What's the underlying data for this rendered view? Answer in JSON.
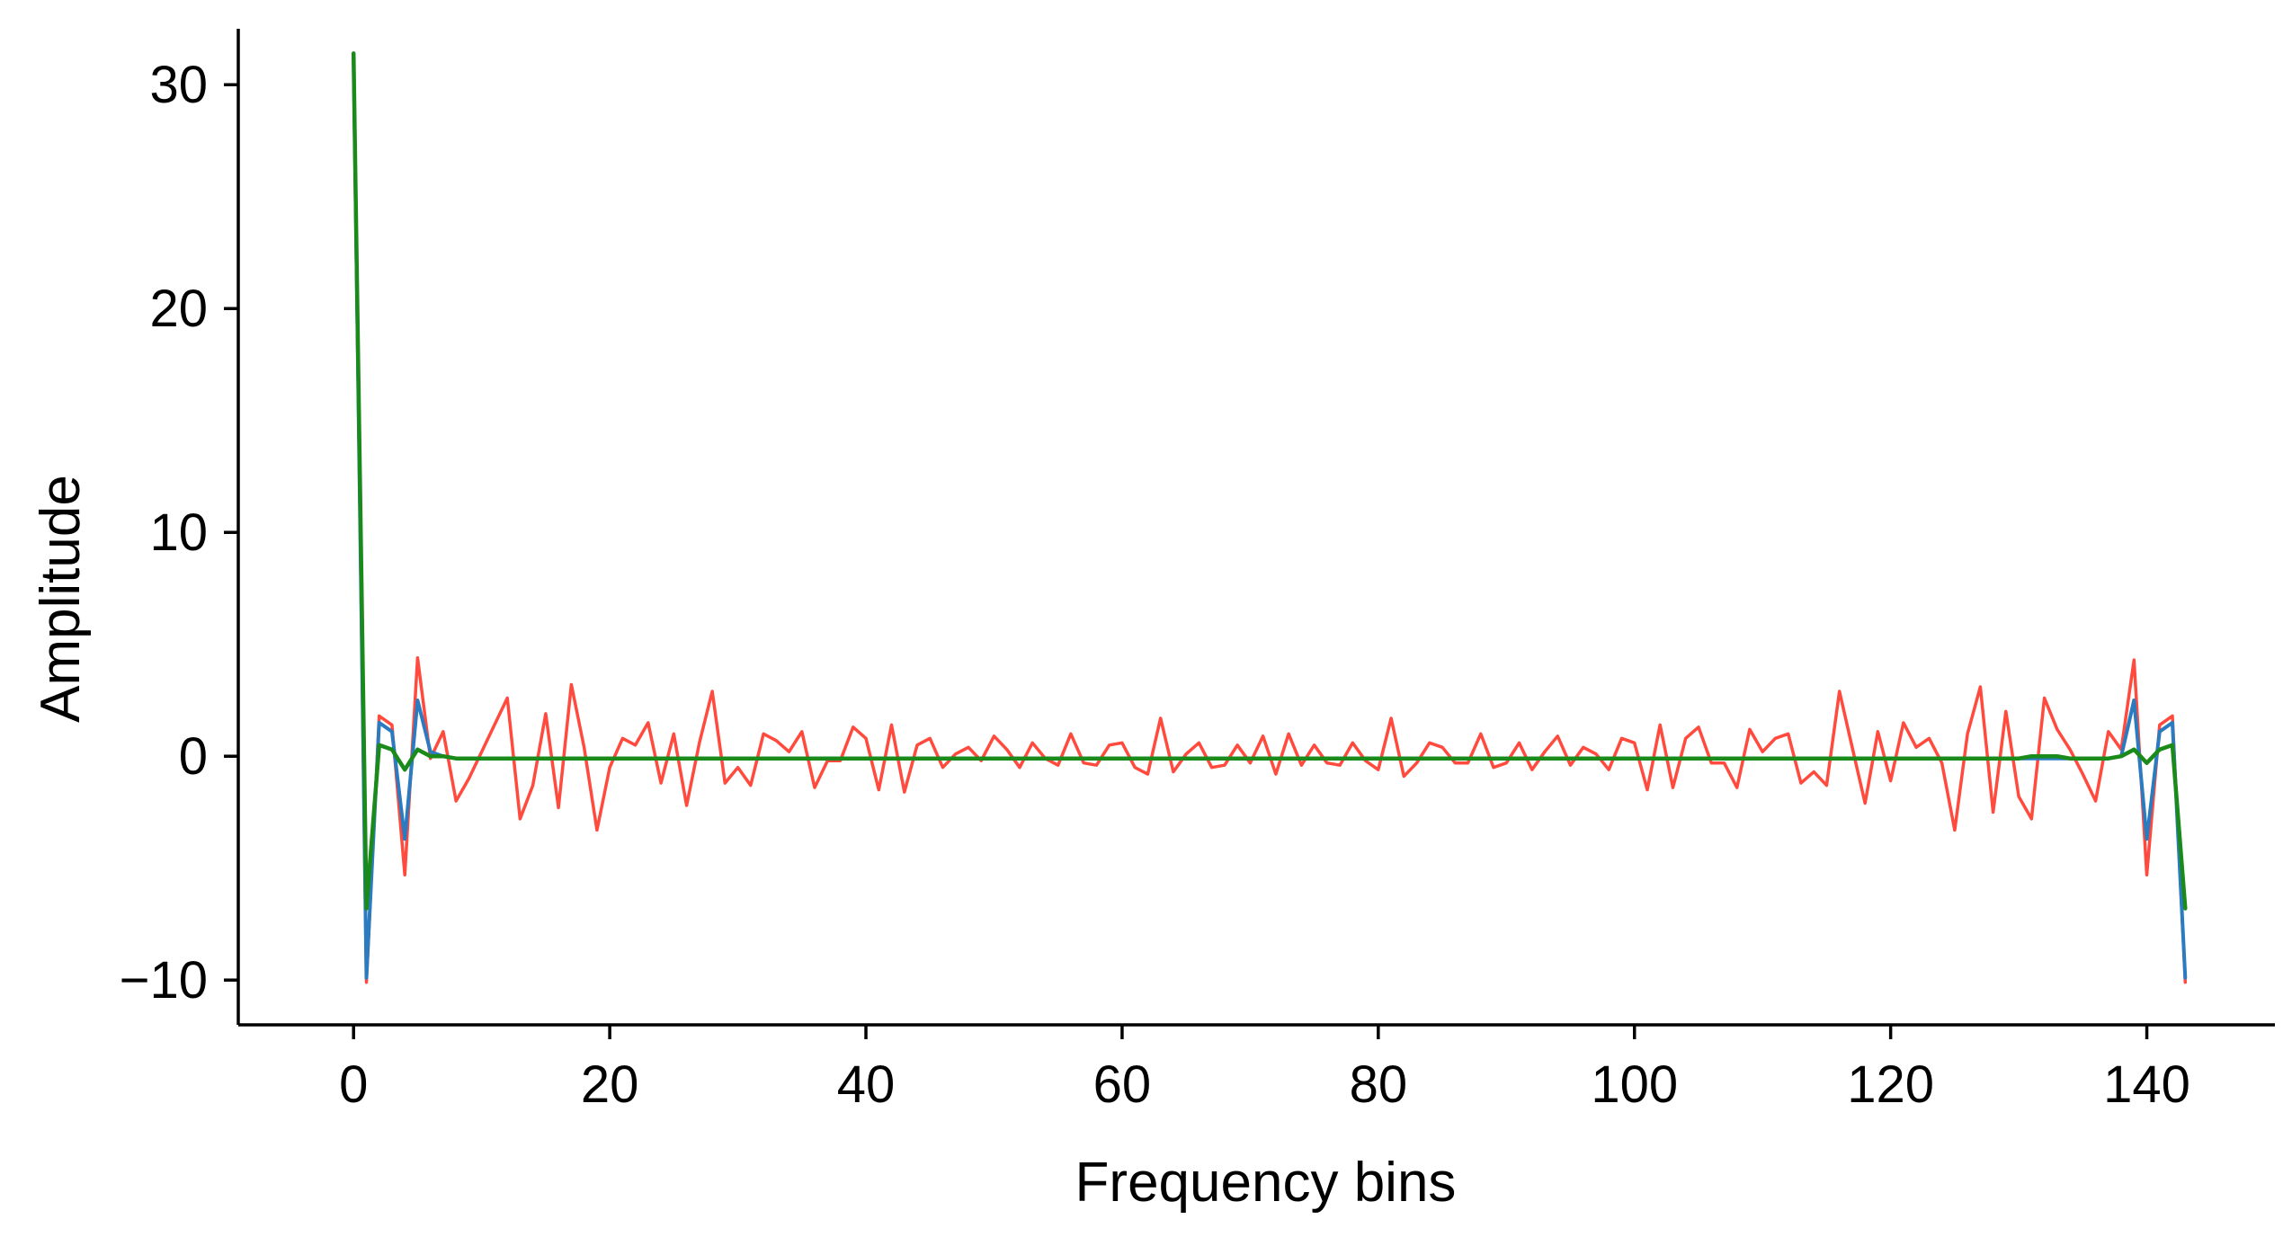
{
  "chart_data": {
    "type": "line",
    "title": "",
    "xlabel": "Frequency bins",
    "ylabel": "Amplitude",
    "xlim": [
      -9,
      150
    ],
    "ylim": [
      -12,
      32.5
    ],
    "xticks": [
      0,
      20,
      40,
      60,
      80,
      100,
      120,
      140
    ],
    "yticks": [
      -10,
      0,
      10,
      20,
      30
    ],
    "ytick_labels": [
      "−10",
      "0",
      "10",
      "20",
      "30"
    ],
    "grid": false,
    "legend": "none",
    "x": [
      0,
      1,
      2,
      3,
      4,
      5,
      6,
      7,
      8,
      9,
      10,
      11,
      12,
      13,
      14,
      15,
      16,
      17,
      18,
      19,
      20,
      21,
      22,
      23,
      24,
      25,
      26,
      27,
      28,
      29,
      30,
      31,
      32,
      33,
      34,
      35,
      36,
      37,
      38,
      39,
      40,
      41,
      42,
      43,
      44,
      45,
      46,
      47,
      48,
      49,
      50,
      51,
      52,
      53,
      54,
      55,
      56,
      57,
      58,
      59,
      60,
      61,
      62,
      63,
      64,
      65,
      66,
      67,
      68,
      69,
      70,
      71,
      72,
      73,
      74,
      75,
      76,
      77,
      78,
      79,
      80,
      81,
      82,
      83,
      84,
      85,
      86,
      87,
      88,
      89,
      90,
      91,
      92,
      93,
      94,
      95,
      96,
      97,
      98,
      99,
      100,
      101,
      102,
      103,
      104,
      105,
      106,
      107,
      108,
      109,
      110,
      111,
      112,
      113,
      114,
      115,
      116,
      117,
      118,
      119,
      120,
      121,
      122,
      123,
      124,
      125,
      126,
      127,
      128,
      129,
      130,
      131,
      132,
      133,
      134,
      135,
      136,
      137,
      138,
      139,
      140,
      141,
      142,
      143
    ],
    "series": [
      {
        "color": "#ff4a3d",
        "values": [
          31.4,
          -10.1,
          1.8,
          1.4,
          -5.3,
          4.4,
          -0.1,
          1.1,
          -2.0,
          -1.0,
          0.2,
          1.4,
          2.6,
          -2.8,
          -1.3,
          1.9,
          -2.3,
          3.2,
          0.4,
          -3.3,
          -0.5,
          0.8,
          0.5,
          1.5,
          -1.2,
          1.0,
          -2.2,
          0.6,
          2.9,
          -1.2,
          -0.5,
          -1.3,
          1.0,
          0.7,
          0.2,
          1.1,
          -1.4,
          -0.2,
          -0.2,
          1.3,
          0.8,
          -1.5,
          1.4,
          -1.6,
          0.5,
          0.8,
          -0.5,
          0.1,
          0.4,
          -0.2,
          0.9,
          0.3,
          -0.5,
          0.6,
          -0.1,
          -0.4,
          1.0,
          -0.3,
          -0.4,
          0.5,
          0.6,
          -0.5,
          -0.8,
          1.7,
          -0.7,
          0.1,
          0.6,
          -0.5,
          -0.4,
          0.5,
          -0.3,
          0.9,
          -0.8,
          1.0,
          -0.4,
          0.5,
          -0.3,
          -0.4,
          0.6,
          -0.2,
          -0.6,
          1.7,
          -0.9,
          -0.3,
          0.6,
          0.4,
          -0.3,
          -0.3,
          1.0,
          -0.5,
          -0.3,
          0.6,
          -0.6,
          0.2,
          0.9,
          -0.4,
          0.4,
          0.1,
          -0.6,
          0.8,
          0.6,
          -1.5,
          1.4,
          -1.4,
          0.8,
          1.3,
          -0.3,
          -0.3,
          -1.4,
          1.2,
          0.2,
          0.8,
          1.0,
          -1.2,
          -0.7,
          -1.3,
          2.9,
          0.4,
          -2.1,
          1.1,
          -1.1,
          1.5,
          0.4,
          0.8,
          -0.3,
          -3.3,
          1.0,
          3.1,
          -2.5,
          2.0,
          -1.8,
          -2.8,
          2.6,
          1.2,
          0.3,
          -0.8,
          -2.0,
          1.1,
          0.3,
          4.3,
          -5.3,
          1.4,
          1.8,
          -10.1
        ]
      },
      {
        "color": "#2a7bbf",
        "values": [
          31.4,
          -9.9,
          1.5,
          1.1,
          -3.7,
          2.5,
          0.2,
          0.0,
          -0.1,
          -0.1,
          -0.1,
          -0.1,
          -0.1,
          -0.1,
          -0.1,
          -0.1,
          -0.1,
          -0.1,
          -0.1,
          -0.1,
          -0.1,
          -0.1,
          -0.1,
          -0.1,
          -0.1,
          -0.1,
          -0.1,
          -0.1,
          -0.1,
          -0.1,
          -0.1,
          -0.1,
          -0.1,
          -0.1,
          -0.1,
          -0.1,
          -0.1,
          -0.1,
          -0.1,
          -0.1,
          -0.1,
          -0.1,
          -0.1,
          -0.1,
          -0.1,
          -0.1,
          -0.1,
          -0.1,
          -0.1,
          -0.1,
          -0.1,
          -0.1,
          -0.1,
          -0.1,
          -0.1,
          -0.1,
          -0.1,
          -0.1,
          -0.1,
          -0.1,
          -0.1,
          -0.1,
          -0.1,
          -0.1,
          -0.1,
          -0.1,
          -0.1,
          -0.1,
          -0.1,
          -0.1,
          -0.1,
          -0.1,
          -0.1,
          -0.1,
          -0.1,
          -0.1,
          -0.1,
          -0.1,
          -0.1,
          -0.1,
          -0.1,
          -0.1,
          -0.1,
          -0.1,
          -0.1,
          -0.1,
          -0.1,
          -0.1,
          -0.1,
          -0.1,
          -0.1,
          -0.1,
          -0.1,
          -0.1,
          -0.1,
          -0.1,
          -0.1,
          -0.1,
          -0.1,
          -0.1,
          -0.1,
          -0.1,
          -0.1,
          -0.1,
          -0.1,
          -0.1,
          -0.1,
          -0.1,
          -0.1,
          -0.1,
          -0.1,
          -0.1,
          -0.1,
          -0.1,
          -0.1,
          -0.1,
          -0.1,
          -0.1,
          -0.1,
          -0.1,
          -0.1,
          -0.1,
          -0.1,
          -0.1,
          -0.1,
          -0.1,
          -0.1,
          -0.1,
          -0.1,
          -0.1,
          -0.1,
          -0.1,
          -0.1,
          -0.1,
          -0.1,
          -0.1,
          -0.1,
          -0.1,
          0.0,
          2.5,
          -3.7,
          1.1,
          1.5,
          -9.9
        ]
      },
      {
        "color": "#1a8a1a",
        "values": [
          31.4,
          -6.8,
          0.5,
          0.3,
          -0.6,
          0.3,
          0.0,
          0.0,
          -0.1,
          -0.1,
          -0.1,
          -0.1,
          -0.1,
          -0.1,
          -0.1,
          -0.1,
          -0.1,
          -0.1,
          -0.1,
          -0.1,
          -0.1,
          -0.1,
          -0.1,
          -0.1,
          -0.1,
          -0.1,
          -0.1,
          -0.1,
          -0.1,
          -0.1,
          -0.1,
          -0.1,
          -0.1,
          -0.1,
          -0.1,
          -0.1,
          -0.1,
          -0.1,
          -0.1,
          -0.1,
          -0.1,
          -0.1,
          -0.1,
          -0.1,
          -0.1,
          -0.1,
          -0.1,
          -0.1,
          -0.1,
          -0.1,
          -0.1,
          -0.1,
          -0.1,
          -0.1,
          -0.1,
          -0.1,
          -0.1,
          -0.1,
          -0.1,
          -0.1,
          -0.1,
          -0.1,
          -0.1,
          -0.1,
          -0.1,
          -0.1,
          -0.1,
          -0.1,
          -0.1,
          -0.1,
          -0.1,
          -0.1,
          -0.1,
          -0.1,
          -0.1,
          -0.1,
          -0.1,
          -0.1,
          -0.1,
          -0.1,
          -0.1,
          -0.1,
          -0.1,
          -0.1,
          -0.1,
          -0.1,
          -0.1,
          -0.1,
          -0.1,
          -0.1,
          -0.1,
          -0.1,
          -0.1,
          -0.1,
          -0.1,
          -0.1,
          -0.1,
          -0.1,
          -0.1,
          -0.1,
          -0.1,
          -0.1,
          -0.1,
          -0.1,
          -0.1,
          -0.1,
          -0.1,
          -0.1,
          -0.1,
          -0.1,
          -0.1,
          -0.1,
          -0.1,
          -0.1,
          -0.1,
          -0.1,
          -0.1,
          -0.1,
          -0.1,
          -0.1,
          -0.1,
          -0.1,
          -0.1,
          -0.1,
          -0.1,
          -0.1,
          -0.1,
          -0.1,
          -0.1,
          -0.1,
          -0.1,
          0.0,
          0.0,
          0.0,
          -0.1,
          -0.1,
          -0.1,
          -0.1,
          0.0,
          0.3,
          -0.3,
          0.3,
          0.5,
          -6.8
        ]
      }
    ]
  }
}
